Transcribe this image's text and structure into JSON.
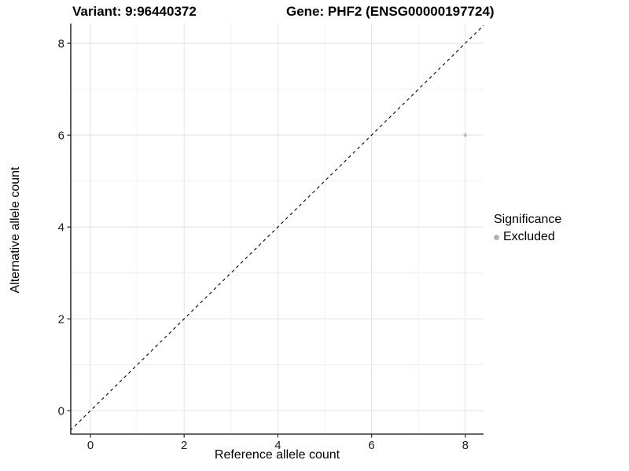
{
  "header": {
    "variant_title": "Variant: 9:96440372",
    "gene_title": "Gene: PHF2 (ENSG00000197724)"
  },
  "chart_data": {
    "type": "scatter",
    "title": "Variant: 9:96440372   Gene: PHF2 (ENSG00000197724)",
    "xlabel": "Reference allele count",
    "ylabel": "Alternative allele count",
    "xlim": [
      -0.42,
      8.39
    ],
    "ylim": [
      -0.51,
      8.43
    ],
    "xticks": [
      0,
      2,
      4,
      6,
      8
    ],
    "yticks": [
      0,
      2,
      4,
      6,
      8
    ],
    "minor_xticks": [
      1,
      3,
      5,
      7
    ],
    "minor_yticks": [
      1,
      3,
      5,
      7
    ],
    "grid": true,
    "legend_position": "right",
    "series": [
      {
        "name": "Excluded",
        "color": "#bebebe",
        "points": [
          {
            "x": 8,
            "y": 6
          }
        ]
      }
    ],
    "identity_line": {
      "style": "dashed",
      "slope": 1,
      "intercept": 0,
      "color": "#000000"
    }
  },
  "legend": {
    "title": "Significance",
    "items": [
      {
        "label": "Excluded",
        "color": "#b3b3b3"
      }
    ]
  },
  "colors": {
    "grid_major": "#e3e3e3",
    "grid_minor": "#f1f1f1",
    "axis_line": "#333333",
    "tick_text": "#1a1a1a"
  }
}
